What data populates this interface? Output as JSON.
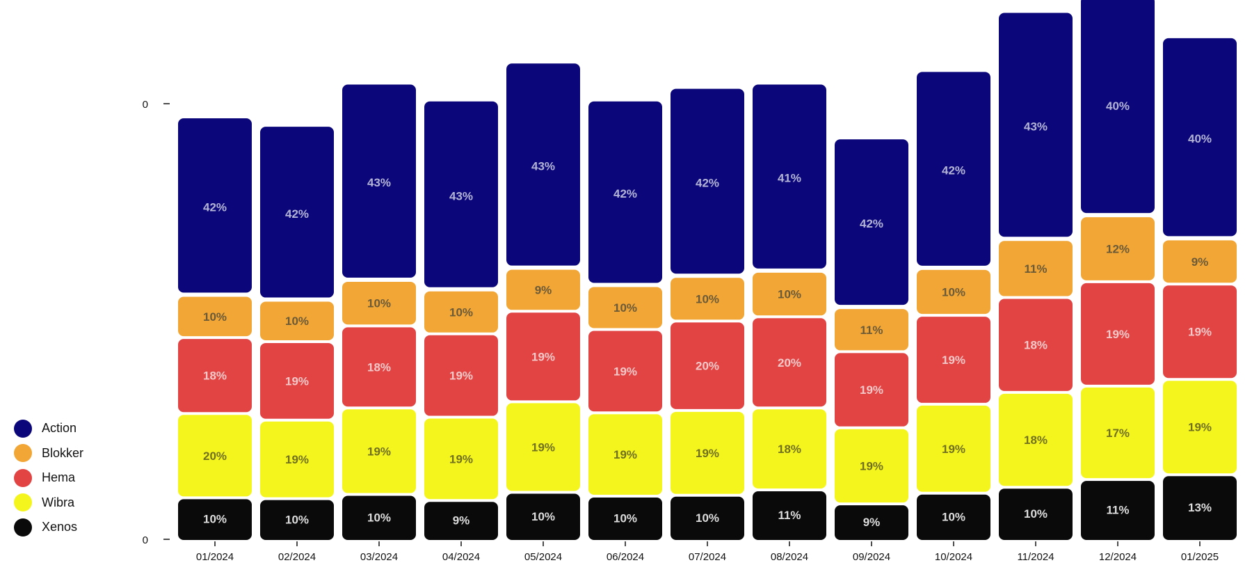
{
  "chart_data": {
    "type": "bar",
    "stacked": true,
    "title": "",
    "xlabel": "",
    "ylabel": "",
    "y_ticks": [
      "0",
      "0"
    ],
    "categories": [
      "01/2024",
      "02/2024",
      "03/2024",
      "04/2024",
      "05/2024",
      "06/2024",
      "07/2024",
      "08/2024",
      "09/2024",
      "10/2024",
      "11/2024",
      "12/2024",
      "01/2025"
    ],
    "bar_totals_relative": [
      1.0,
      0.98,
      1.08,
      1.04,
      1.13,
      1.04,
      1.07,
      1.08,
      0.95,
      1.11,
      1.25,
      1.29,
      1.19
    ],
    "series": [
      {
        "name": "Xenos",
        "color": "#0a0a0a",
        "label_color": "#dddddd",
        "values": [
          10,
          10,
          10,
          9,
          10,
          10,
          10,
          11,
          9,
          10,
          10,
          11,
          13
        ]
      },
      {
        "name": "Wibra",
        "color": "#f5f51e",
        "label_color": "#707020",
        "values": [
          20,
          19,
          19,
          19,
          19,
          19,
          19,
          18,
          19,
          19,
          18,
          17,
          19
        ]
      },
      {
        "name": "Hema",
        "color": "#e24444",
        "label_color": "#f2c8c8",
        "values": [
          18,
          19,
          18,
          19,
          19,
          19,
          20,
          20,
          19,
          19,
          18,
          19,
          19
        ]
      },
      {
        "name": "Blokker",
        "color": "#f2a635",
        "label_color": "#6b5a38",
        "values": [
          10,
          10,
          10,
          10,
          9,
          10,
          10,
          10,
          11,
          10,
          11,
          12,
          9
        ]
      },
      {
        "name": "Action",
        "color": "#0b077a",
        "label_color": "#b4b4d6",
        "values": [
          42,
          42,
          43,
          43,
          43,
          42,
          42,
          41,
          42,
          42,
          43,
          40,
          40
        ]
      }
    ],
    "legend_order": [
      "Action",
      "Blokker",
      "Hema",
      "Wibra",
      "Xenos"
    ],
    "legend_placement": "bottom-left",
    "grid": false
  }
}
